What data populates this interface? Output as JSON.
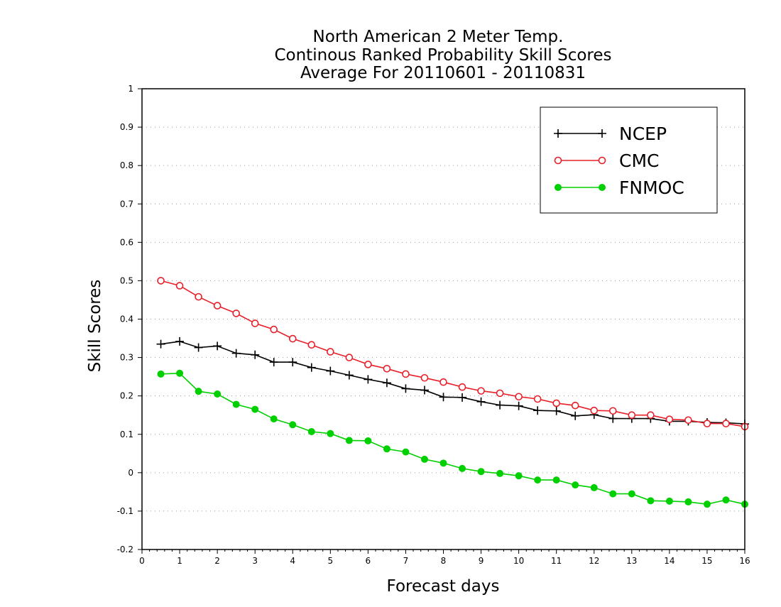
{
  "chart_data": {
    "type": "line",
    "title_lines": [
      "North American 2 Meter Temp.",
      "Continous Ranked Probability Skill Scores",
      "Average For 20110601 - 20110831"
    ],
    "xlabel": "Forecast days",
    "ylabel": "Skill Scores",
    "xlim": [
      0,
      16
    ],
    "ylim": [
      -0.2,
      1
    ],
    "xticks": [
      0,
      1,
      2,
      3,
      4,
      5,
      6,
      7,
      8,
      9,
      10,
      11,
      12,
      13,
      14,
      15,
      16
    ],
    "yticks": [
      -0.2,
      -0.1,
      0,
      0.1,
      0.2,
      0.3,
      0.4,
      0.5,
      0.6,
      0.7,
      0.8,
      0.9,
      1
    ],
    "ytick_labels": [
      "-0.2",
      "-0.1",
      "0",
      "0.1",
      "0.2",
      "0.3",
      "0.4",
      "0.5",
      "0.6",
      "0.7",
      "0.8",
      "0.9",
      "1"
    ],
    "grid": "horizontal dotted",
    "legend_position": "top-right",
    "x": [
      0.5,
      1,
      1.5,
      2,
      2.5,
      3,
      3.5,
      4,
      4.5,
      5,
      5.5,
      6,
      6.5,
      7,
      7.5,
      8,
      8.5,
      9,
      9.5,
      10,
      10.5,
      11,
      11.5,
      12,
      12.5,
      13,
      13.5,
      14,
      14.5,
      15,
      15.5,
      16
    ],
    "series": [
      {
        "name": "NCEP",
        "color": "#000000",
        "marker": "plus",
        "values": [
          0.335,
          0.342,
          0.326,
          0.33,
          0.311,
          0.307,
          0.288,
          0.288,
          0.274,
          0.265,
          0.254,
          0.243,
          0.234,
          0.219,
          0.215,
          0.197,
          0.196,
          0.185,
          0.176,
          0.174,
          0.162,
          0.161,
          0.148,
          0.151,
          0.141,
          0.141,
          0.141,
          0.134,
          0.134,
          0.131,
          0.13,
          0.127
        ]
      },
      {
        "name": "CMC",
        "color": "#e8202a",
        "marker": "open-circle",
        "values": [
          0.5,
          0.487,
          0.458,
          0.435,
          0.415,
          0.389,
          0.373,
          0.349,
          0.333,
          0.315,
          0.3,
          0.282,
          0.271,
          0.257,
          0.247,
          0.236,
          0.223,
          0.213,
          0.207,
          0.198,
          0.192,
          0.181,
          0.175,
          0.162,
          0.161,
          0.15,
          0.15,
          0.139,
          0.137,
          0.128,
          0.128,
          0.12
        ]
      },
      {
        "name": "FNMOC",
        "color": "#00d000",
        "marker": "filled-circle",
        "values": [
          0.257,
          0.259,
          0.212,
          0.205,
          0.178,
          0.165,
          0.14,
          0.125,
          0.107,
          0.102,
          0.084,
          0.083,
          0.062,
          0.054,
          0.035,
          0.025,
          0.011,
          0.003,
          -0.002,
          -0.008,
          -0.019,
          -0.019,
          -0.032,
          -0.039,
          -0.055,
          -0.055,
          -0.073,
          -0.074,
          -0.076,
          -0.082,
          -0.071,
          -0.082
        ]
      }
    ]
  }
}
